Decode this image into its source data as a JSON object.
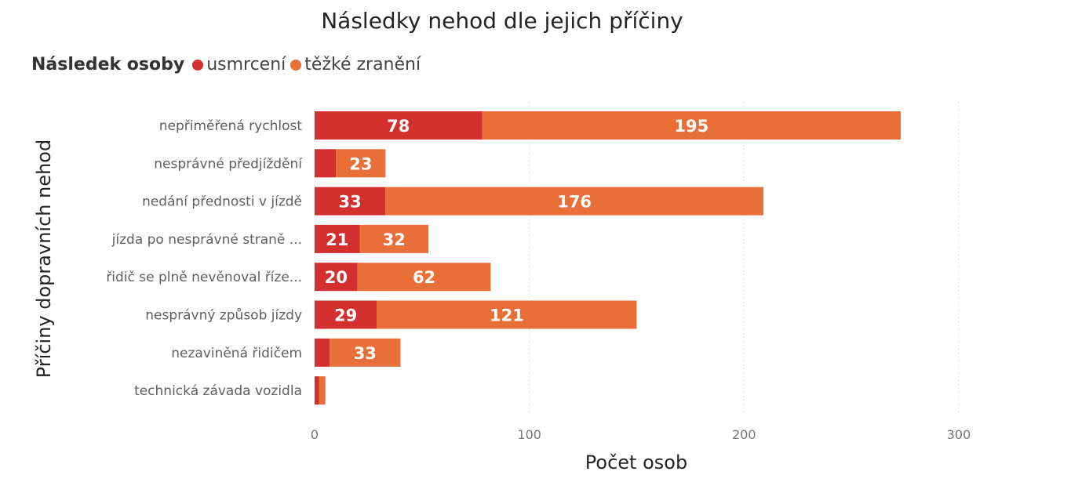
{
  "chart_data": {
    "type": "bar",
    "orientation": "horizontal",
    "stacked": true,
    "title": "Následky nehod dle jejich příčiny",
    "xlabel": "Počet osob",
    "ylabel": "Příčiny dopravních nehod",
    "legend_title": "Následek osoby",
    "legend_position": "top-left",
    "categories": [
      "nepřiměřená rychlost",
      "nesprávné předjíždění",
      "nedání přednosti v jízdě",
      "jízda po nesprávné straně ...",
      "řidič se plně nevěnoval říze...",
      "nesprávný způsob jízdy",
      "nezaviněná řidičem",
      "technická závada vozidla"
    ],
    "series": [
      {
        "name": "usmrcení",
        "color": "#d32f2f",
        "values": [
          78,
          10,
          33,
          21,
          20,
          29,
          7,
          2
        ]
      },
      {
        "name": "těžké zranění",
        "color": "#e86f38",
        "values": [
          195,
          23,
          176,
          32,
          62,
          121,
          33,
          3
        ]
      }
    ],
    "xlim": [
      0,
      330
    ],
    "xticks": [
      0,
      100,
      200,
      300
    ],
    "grid": true,
    "label_min_value": 15
  }
}
